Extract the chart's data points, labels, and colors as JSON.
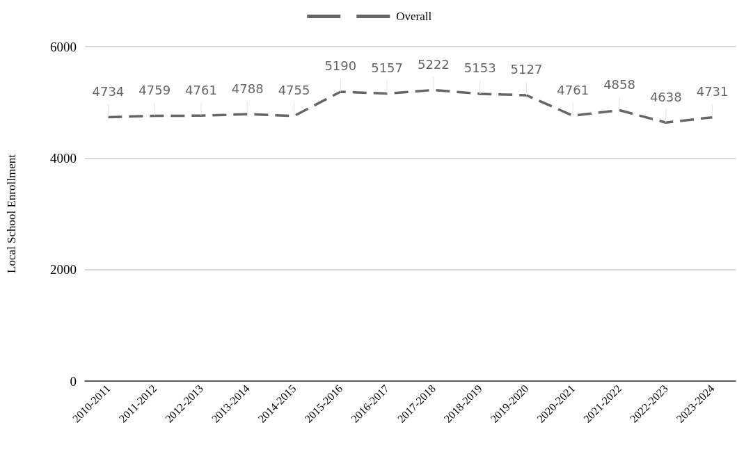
{
  "chart_data": {
    "type": "line",
    "ylabel": "Local School Enrollment",
    "categories": [
      "2010-2011",
      "2011-2012",
      "2012-2013",
      "2013-2014",
      "2014-2015",
      "2015-2016",
      "2016-2017",
      "2017-2018",
      "2018-2019",
      "2019-2020",
      "2020-2021",
      "2021-2022",
      "2022-2023",
      "2023-2024"
    ],
    "series": [
      {
        "name": "Overall",
        "color": "#666666",
        "values": [
          4734,
          4759,
          4761,
          4788,
          4755,
          5190,
          5157,
          5222,
          5153,
          5127,
          4761,
          4858,
          4638,
          4731
        ]
      }
    ],
    "ylim": [
      0,
      6000
    ],
    "yticks": [
      0,
      2000,
      4000,
      6000
    ],
    "grid": "y",
    "legend": "top",
    "marker": "none",
    "line_style": "dashed",
    "data_labels": true
  }
}
